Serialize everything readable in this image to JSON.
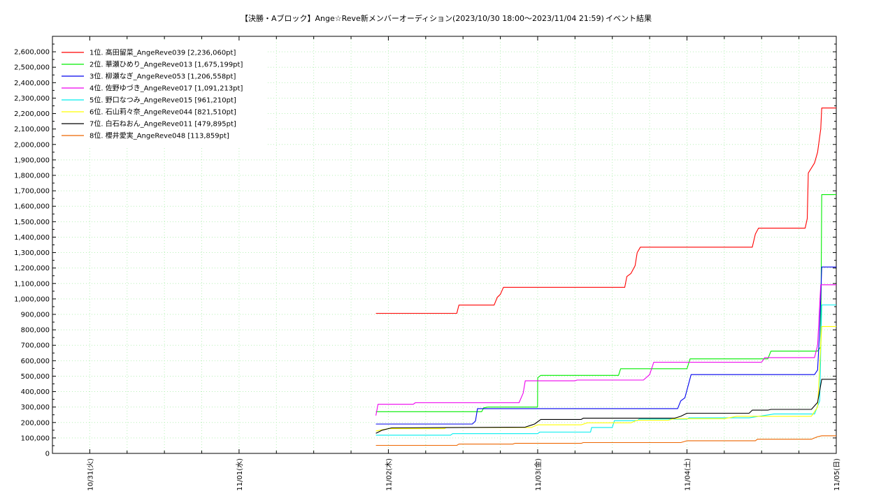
{
  "chart_data": {
    "type": "line",
    "title": "【決勝・Aブロック】Ange☆Reve新メンバーオーディション(2023/10/30 18:00〜2023/11/04 21:59)",
    "title_suffix": "イベント結果",
    "xlabel": "",
    "ylabel": "",
    "x_tick_labels": [
      "10/31(火)",
      "11/01(水)",
      "11/02(木)",
      "11/03(金)",
      "11/04(土)",
      "11/05(日)"
    ],
    "x_axis": {
      "start": "2023-10-30T18:00",
      "end": "2023-11-05T00:00"
    },
    "ylim": [
      0,
      2700000
    ],
    "y_tick_step": 100000,
    "y_tick_labels": [
      "0",
      "100,000",
      "200,000",
      "300,000",
      "400,000",
      "500,000",
      "600,000",
      "700,000",
      "800,000",
      "900,000",
      "1,000,000",
      "1,100,000",
      "1,200,000",
      "1,300,000",
      "1,400,000",
      "1,500,000",
      "1,600,000",
      "1,700,000",
      "1,800,000",
      "1,900,000",
      "2,000,000",
      "2,100,000",
      "2,200,000",
      "2,300,000",
      "2,400,000",
      "2,500,000",
      "2,600,000"
    ],
    "grid": true,
    "legend_position": "top-left",
    "series": [
      {
        "name": "1位. 髙田留菜_AngeReve039 [2,236,060pt]",
        "color": "#ff0000",
        "points": [
          [
            "2023-11-01T22:00",
            907000
          ],
          [
            "2023-11-02T11:00",
            907000
          ],
          [
            "2023-11-02T11:20",
            960000
          ],
          [
            "2023-11-02T17:00",
            960000
          ],
          [
            "2023-11-02T17:30",
            1010000
          ],
          [
            "2023-11-02T18:00",
            1030000
          ],
          [
            "2023-11-02T18:30",
            1075000
          ],
          [
            "2023-11-03T14:00",
            1075000
          ],
          [
            "2023-11-03T14:20",
            1145000
          ],
          [
            "2023-11-03T15:00",
            1165000
          ],
          [
            "2023-11-03T15:40",
            1215000
          ],
          [
            "2023-11-03T16:00",
            1300000
          ],
          [
            "2023-11-03T16:30",
            1335000
          ],
          [
            "2023-11-04T10:30",
            1335000
          ],
          [
            "2023-11-04T11:00",
            1420000
          ],
          [
            "2023-11-04T11:30",
            1458000
          ],
          [
            "2023-11-04T19:00",
            1458000
          ],
          [
            "2023-11-04T19:20",
            1520000
          ],
          [
            "2023-11-04T19:30",
            1815000
          ],
          [
            "2023-11-04T20:30",
            1880000
          ],
          [
            "2023-11-04T21:00",
            1950000
          ],
          [
            "2023-11-04T21:30",
            2100000
          ],
          [
            "2023-11-04T21:40",
            2236060
          ],
          [
            "2023-11-05T00:00",
            2236060
          ]
        ]
      },
      {
        "name": "2位. 華瀬ひめり_AngeReve013 [1,675,199pt]",
        "color": "#00ee00",
        "points": [
          [
            "2023-11-01T22:00",
            270000
          ],
          [
            "2023-11-02T15:00",
            270000
          ],
          [
            "2023-11-02T15:20",
            295000
          ],
          [
            "2023-11-02T16:00",
            300000
          ],
          [
            "2023-11-02T23:59",
            300000
          ],
          [
            "2023-11-03T00:00",
            490000
          ],
          [
            "2023-11-03T00:30",
            505000
          ],
          [
            "2023-11-03T13:00",
            505000
          ],
          [
            "2023-11-03T13:20",
            548000
          ],
          [
            "2023-11-04T00:00",
            548000
          ],
          [
            "2023-11-04T00:30",
            612000
          ],
          [
            "2023-11-04T13:00",
            612000
          ],
          [
            "2023-11-04T13:30",
            662000
          ],
          [
            "2023-11-04T17:00",
            662000
          ],
          [
            "2023-11-04T21:00",
            662000
          ],
          [
            "2023-11-04T21:30",
            690000
          ],
          [
            "2023-11-04T21:40",
            1675199
          ],
          [
            "2023-11-05T00:00",
            1675199
          ]
        ]
      },
      {
        "name": "3位. 柳瀬なぎ_AngeReve053 [1,206,558pt]",
        "color": "#0000ee",
        "points": [
          [
            "2023-11-01T22:00",
            190000
          ],
          [
            "2023-11-02T13:30",
            190000
          ],
          [
            "2023-11-02T14:00",
            210000
          ],
          [
            "2023-11-02T14:20",
            290000
          ],
          [
            "2023-11-03T22:30",
            290000
          ],
          [
            "2023-11-03T23:00",
            340000
          ],
          [
            "2023-11-03T23:40",
            360000
          ],
          [
            "2023-11-04T00:40",
            510000
          ],
          [
            "2023-11-04T20:30",
            510000
          ],
          [
            "2023-11-04T21:00",
            540000
          ],
          [
            "2023-11-04T21:20",
            800000
          ],
          [
            "2023-11-04T21:40",
            1206558
          ],
          [
            "2023-11-05T00:00",
            1206558
          ]
        ]
      },
      {
        "name": "4位. 佐野ゆづき_AngeReve017 [1,091,213pt]",
        "color": "#ee00ee",
        "points": [
          [
            "2023-11-01T22:00",
            245000
          ],
          [
            "2023-11-01T22:20",
            318000
          ],
          [
            "2023-11-02T04:00",
            318000
          ],
          [
            "2023-11-02T04:20",
            328000
          ],
          [
            "2023-11-02T21:00",
            328000
          ],
          [
            "2023-11-02T21:40",
            390000
          ],
          [
            "2023-11-02T22:00",
            470000
          ],
          [
            "2023-11-03T06:00",
            470000
          ],
          [
            "2023-11-03T06:20",
            475000
          ],
          [
            "2023-11-03T17:00",
            475000
          ],
          [
            "2023-11-03T18:00",
            510000
          ],
          [
            "2023-11-03T18:40",
            590000
          ],
          [
            "2023-11-04T12:00",
            590000
          ],
          [
            "2023-11-04T12:30",
            620000
          ],
          [
            "2023-11-04T20:30",
            620000
          ],
          [
            "2023-11-04T21:00",
            700000
          ],
          [
            "2023-11-04T21:30",
            1091213
          ],
          [
            "2023-11-05T00:00",
            1091213
          ]
        ]
      },
      {
        "name": "5位. 野口なつみ_AngeReve015 [961,210pt]",
        "color": "#00eeee",
        "points": [
          [
            "2023-11-01T22:00",
            118000
          ],
          [
            "2023-11-02T10:00",
            118000
          ],
          [
            "2023-11-02T10:20",
            128000
          ],
          [
            "2023-11-03T00:00",
            128000
          ],
          [
            "2023-11-03T00:20",
            138000
          ],
          [
            "2023-11-03T08:30",
            138000
          ],
          [
            "2023-11-03T08:40",
            168000
          ],
          [
            "2023-11-03T12:00",
            168000
          ],
          [
            "2023-11-03T12:20",
            212000
          ],
          [
            "2023-11-03T16:00",
            212000
          ],
          [
            "2023-11-03T16:20",
            222000
          ],
          [
            "2023-11-04T00:00",
            222000
          ],
          [
            "2023-11-04T00:20",
            230000
          ],
          [
            "2023-11-04T10:00",
            230000
          ],
          [
            "2023-11-04T14:00",
            255000
          ],
          [
            "2023-11-04T20:30",
            255000
          ],
          [
            "2023-11-04T21:20",
            340000
          ],
          [
            "2023-11-04T21:40",
            961210
          ],
          [
            "2023-11-05T00:00",
            961210
          ]
        ]
      },
      {
        "name": "6位. 石山莉々奈_AngeReve044 [821,510pt]",
        "color": "#ffff00",
        "points": [
          [
            "2023-11-01T22:00",
            145000
          ],
          [
            "2023-11-02T00:00",
            160000
          ],
          [
            "2023-11-02T09:00",
            160000
          ],
          [
            "2023-11-02T09:20",
            168000
          ],
          [
            "2023-11-02T23:00",
            168000
          ],
          [
            "2023-11-03T00:00",
            185000
          ],
          [
            "2023-11-03T07:00",
            185000
          ],
          [
            "2023-11-03T08:00",
            198000
          ],
          [
            "2023-11-03T15:00",
            198000
          ],
          [
            "2023-11-03T16:00",
            215000
          ],
          [
            "2023-11-03T21:00",
            215000
          ],
          [
            "2023-11-03T22:00",
            225000
          ],
          [
            "2023-11-04T06:00",
            225000
          ],
          [
            "2023-11-04T08:00",
            240000
          ],
          [
            "2023-11-04T20:00",
            240000
          ],
          [
            "2023-11-04T21:00",
            300000
          ],
          [
            "2023-11-04T21:40",
            821510
          ],
          [
            "2023-11-05T00:00",
            821510
          ]
        ]
      },
      {
        "name": "7位. 白石ねおん_AngeReve011 [479,895pt]",
        "color": "#000000",
        "points": [
          [
            "2023-11-01T22:00",
            130000
          ],
          [
            "2023-11-01T23:00",
            150000
          ],
          [
            "2023-11-02T00:30",
            165000
          ],
          [
            "2023-11-02T22:00",
            170000
          ],
          [
            "2023-11-02T23:30",
            190000
          ],
          [
            "2023-11-03T00:30",
            220000
          ],
          [
            "2023-11-03T07:00",
            220000
          ],
          [
            "2023-11-03T07:20",
            228000
          ],
          [
            "2023-11-03T22:00",
            228000
          ],
          [
            "2023-11-03T23:00",
            240000
          ],
          [
            "2023-11-04T00:00",
            260000
          ],
          [
            "2023-11-04T10:00",
            260000
          ],
          [
            "2023-11-04T10:30",
            280000
          ],
          [
            "2023-11-04T13:00",
            280000
          ],
          [
            "2023-11-04T13:30",
            285000
          ],
          [
            "2023-11-04T20:00",
            285000
          ],
          [
            "2023-11-04T21:00",
            330000
          ],
          [
            "2023-11-04T21:40",
            479895
          ],
          [
            "2023-11-05T00:00",
            479895
          ]
        ]
      },
      {
        "name": "8位. 櫻井愛実_AngeReve048 [113,859pt]",
        "color": "#ee6600",
        "points": [
          [
            "2023-11-01T22:00",
            52000
          ],
          [
            "2023-11-02T11:00",
            52000
          ],
          [
            "2023-11-02T11:20",
            60000
          ],
          [
            "2023-11-02T20:00",
            60000
          ],
          [
            "2023-11-02T20:20",
            65000
          ],
          [
            "2023-11-03T07:00",
            65000
          ],
          [
            "2023-11-03T07:20",
            70000
          ],
          [
            "2023-11-03T23:00",
            70000
          ],
          [
            "2023-11-04T00:00",
            82000
          ],
          [
            "2023-11-04T11:00",
            82000
          ],
          [
            "2023-11-04T11:20",
            92000
          ],
          [
            "2023-11-04T20:00",
            92000
          ],
          [
            "2023-11-04T21:00",
            108000
          ],
          [
            "2023-11-04T21:40",
            113859
          ],
          [
            "2023-11-05T00:00",
            113859
          ]
        ]
      }
    ]
  }
}
